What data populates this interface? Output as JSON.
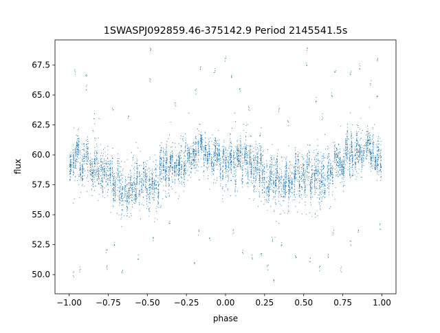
{
  "chart_data": {
    "type": "scatter",
    "title": "1SWASPJ092859.46-375142.9 Period 2145541.5s",
    "xlabel": "phase",
    "ylabel": "flux",
    "xlim": [
      -1.09,
      1.09
    ],
    "ylim": [
      48.4,
      69.6
    ],
    "xticks": [
      -1.0,
      -0.75,
      -0.5,
      -0.25,
      0.0,
      0.25,
      0.5,
      0.75,
      1.0
    ],
    "xtick_labels": [
      "−1.00",
      "−0.75",
      "−0.50",
      "−0.25",
      "0.00",
      "0.25",
      "0.50",
      "0.75",
      "1.00"
    ],
    "yticks": [
      50.0,
      52.5,
      55.0,
      57.5,
      60.0,
      62.5,
      65.0,
      67.5
    ],
    "ytick_labels": [
      "50.0",
      "52.5",
      "55.0",
      "57.5",
      "60.0",
      "62.5",
      "65.0",
      "67.5"
    ],
    "grid": false,
    "marker_color": "#1f77b4",
    "series": [
      {
        "phase": [
          -1.0,
          -0.95,
          -0.9,
          -0.85,
          -0.8,
          -0.75,
          -0.7,
          -0.65,
          -0.6,
          -0.55,
          -0.5,
          -0.45,
          -0.4,
          -0.35,
          -0.3,
          -0.25,
          -0.2,
          -0.15,
          -0.1,
          -0.05,
          0.0,
          0.05,
          0.1,
          0.15,
          0.2,
          0.25,
          0.3,
          0.35,
          0.4,
          0.45,
          0.5,
          0.55,
          0.6,
          0.65,
          0.7,
          0.75,
          0.8,
          0.85,
          0.9,
          0.95,
          1.0
        ],
        "flux_median": [
          58.5,
          59.8,
          59.5,
          59.0,
          59.2,
          58.5,
          57.5,
          57.0,
          57.3,
          57.8,
          58.0,
          57.6,
          58.5,
          58.8,
          59.2,
          59.6,
          60.0,
          60.3,
          60.0,
          59.6,
          59.2,
          59.4,
          59.6,
          59.4,
          59.0,
          58.5,
          57.8,
          57.5,
          57.8,
          58.2,
          58.3,
          57.7,
          58.0,
          58.6,
          59.1,
          59.5,
          60.0,
          60.3,
          60.4,
          60.2,
          59.8
        ],
        "flux_spread": [
          2.0,
          2.4,
          2.4,
          2.2,
          2.2,
          2.4,
          2.6,
          2.6,
          2.4,
          2.4,
          2.6,
          2.6,
          2.6,
          2.4,
          2.2,
          2.2,
          2.0,
          2.0,
          2.0,
          2.2,
          2.6,
          2.4,
          2.2,
          2.2,
          2.4,
          2.4,
          2.6,
          2.6,
          2.4,
          2.4,
          2.6,
          2.6,
          2.6,
          2.4,
          2.2,
          2.2,
          2.2,
          2.0,
          2.0,
          2.0,
          2.0
        ]
      }
    ],
    "outliers": [
      [
        -0.96,
        66.9
      ],
      [
        -0.89,
        66.5
      ],
      [
        -0.89,
        65.6
      ],
      [
        -0.84,
        63.2
      ],
      [
        -0.72,
        63.8
      ],
      [
        -0.62,
        63.1
      ],
      [
        -0.48,
        68.8
      ],
      [
        -0.48,
        66.2
      ],
      [
        -0.32,
        64.2
      ],
      [
        -0.27,
        61.4
      ],
      [
        -0.19,
        65.3
      ],
      [
        -0.16,
        67.2
      ],
      [
        -0.07,
        67.1
      ],
      [
        0.0,
        68.0
      ],
      [
        0.04,
        66.6
      ],
      [
        0.09,
        65.4
      ],
      [
        0.15,
        63.8
      ],
      [
        0.22,
        61.8
      ],
      [
        0.34,
        63.7
      ],
      [
        0.4,
        62.6
      ],
      [
        0.52,
        68.8
      ],
      [
        0.52,
        67.5
      ],
      [
        0.58,
        64.6
      ],
      [
        0.62,
        63.2
      ],
      [
        0.68,
        65.1
      ],
      [
        0.7,
        67.1
      ],
      [
        0.8,
        66.9
      ],
      [
        0.86,
        67.4
      ],
      [
        0.93,
        66.0
      ],
      [
        0.97,
        67.9
      ],
      [
        0.97,
        65.0
      ],
      [
        -0.97,
        50.0
      ],
      [
        -0.93,
        50.4
      ],
      [
        -0.76,
        52.0
      ],
      [
        -0.76,
        50.6
      ],
      [
        -0.71,
        52.6
      ],
      [
        -0.66,
        50.2
      ],
      [
        -0.56,
        51.5
      ],
      [
        -0.46,
        53.0
      ],
      [
        -0.36,
        54.5
      ],
      [
        -0.2,
        51.1
      ],
      [
        -0.17,
        53.5
      ],
      [
        -0.1,
        53.0
      ],
      [
        0.05,
        53.6
      ],
      [
        0.11,
        52.0
      ],
      [
        0.17,
        51.4
      ],
      [
        0.23,
        51.8
      ],
      [
        0.27,
        50.6
      ],
      [
        0.31,
        49.5
      ],
      [
        0.3,
        53.0
      ],
      [
        0.36,
        52.6
      ],
      [
        0.45,
        51.4
      ],
      [
        0.54,
        51.2
      ],
      [
        0.6,
        50.5
      ],
      [
        0.66,
        51.5
      ],
      [
        0.69,
        53.5
      ],
      [
        0.74,
        50.4
      ],
      [
        0.8,
        52.6
      ],
      [
        0.85,
        53.5
      ],
      [
        0.99,
        54.0
      ]
    ]
  }
}
